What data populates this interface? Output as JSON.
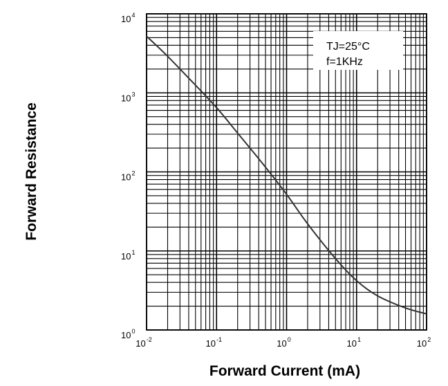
{
  "chart_data": {
    "type": "line",
    "xlabel": "Forward Current (mA)",
    "ylabel": "Forward Resistance",
    "x_scale": "log",
    "y_scale": "log",
    "xlim": [
      0.01,
      100
    ],
    "ylim": [
      1,
      10000
    ],
    "grid": true,
    "x_ticks": [
      {
        "mantissa": "10",
        "exp": "-2"
      },
      {
        "mantissa": "10",
        "exp": "-1"
      },
      {
        "mantissa": "10",
        "exp": "0"
      },
      {
        "mantissa": "10",
        "exp": "1"
      },
      {
        "mantissa": "10",
        "exp": "2"
      }
    ],
    "y_ticks": [
      {
        "mantissa": "10",
        "exp": "4"
      },
      {
        "mantissa": "10",
        "exp": "3"
      },
      {
        "mantissa": "10",
        "exp": "2"
      },
      {
        "mantissa": "10",
        "exp": "1"
      },
      {
        "mantissa": "10",
        "exp": "0"
      }
    ],
    "annotation": {
      "line1": "TJ=25°C",
      "line2": "f=1KHz",
      "position": "top-right"
    },
    "series": [
      {
        "x": [
          0.01,
          0.02,
          0.05,
          0.1,
          0.2,
          0.5,
          1,
          2,
          5,
          10,
          20,
          50,
          100
        ],
        "y": [
          5200,
          2900,
          1250,
          650,
          310,
          115,
          52,
          22,
          8,
          4.2,
          2.7,
          1.9,
          1.6
        ]
      }
    ],
    "colors": {
      "line": "#333333",
      "grid": "#000000"
    }
  }
}
